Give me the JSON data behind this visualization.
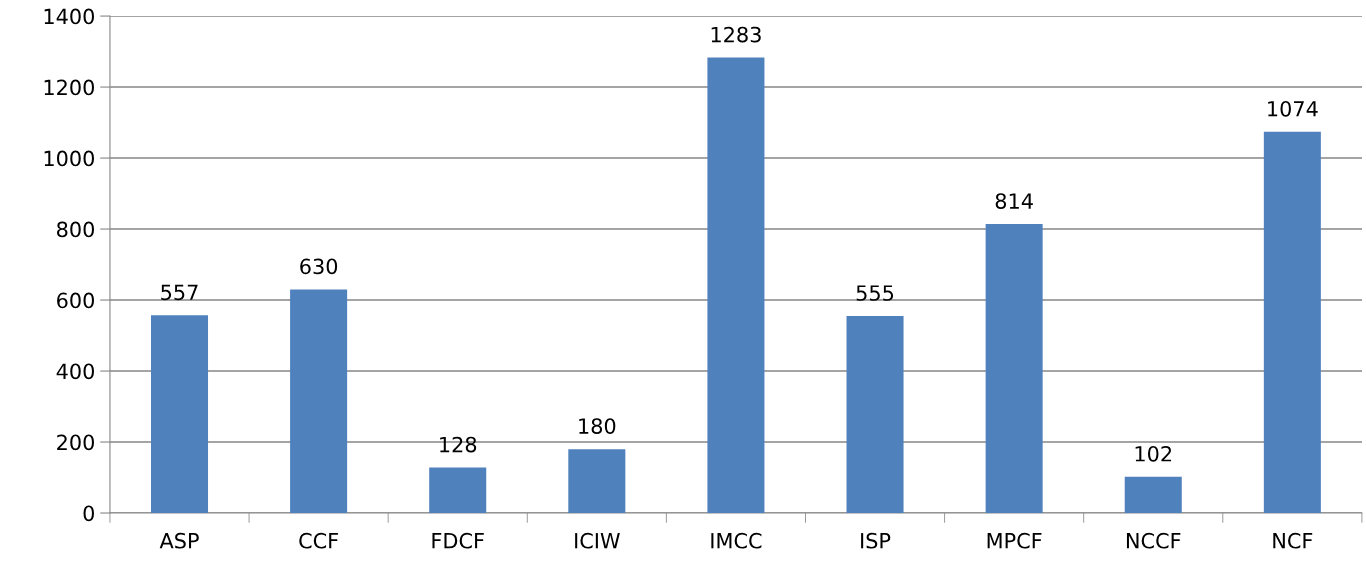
{
  "chart_data": {
    "type": "bar",
    "categories": [
      "ASP",
      "CCF",
      "FDCF",
      "ICIW",
      "IMCC",
      "ISP",
      "MPCF",
      "NCCF",
      "NCF"
    ],
    "values": [
      557,
      630,
      128,
      180,
      1283,
      555,
      814,
      102,
      1074
    ],
    "color": "#4f81bd",
    "ylim": [
      0,
      1400
    ],
    "yticks": [
      0,
      200,
      400,
      600,
      800,
      1000,
      1200,
      1400
    ],
    "grid": "y",
    "data_labels": true
  }
}
